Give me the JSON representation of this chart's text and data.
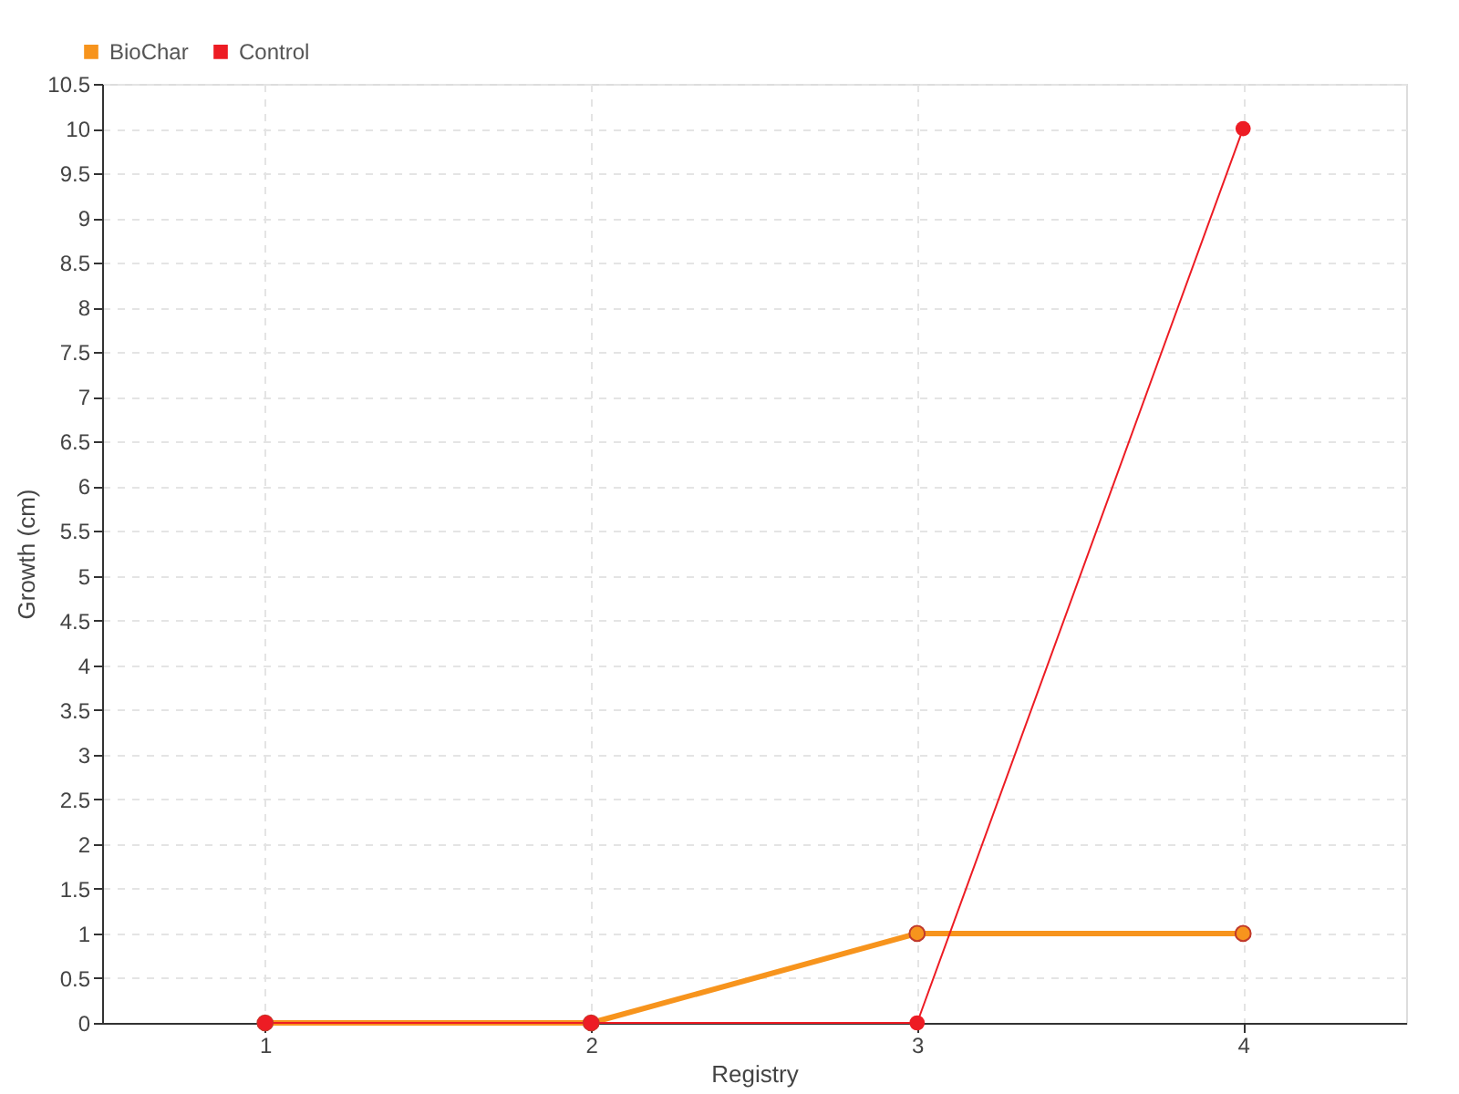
{
  "chart_data": {
    "type": "line",
    "xlabel": "Registry",
    "ylabel": "Growth (cm)",
    "x": [
      1,
      2,
      3,
      4
    ],
    "series": [
      {
        "name": "BioChar",
        "color": "#f7941d",
        "values": [
          0,
          0,
          1,
          1
        ]
      },
      {
        "name": "Control",
        "color": "#ed1c24",
        "values": [
          0,
          0,
          0,
          10
        ]
      }
    ],
    "xlim": [
      0.5,
      4.5
    ],
    "xticks": [
      1,
      2,
      3,
      4
    ],
    "ylim": [
      0,
      10.5
    ],
    "yticks": [
      0,
      0.5,
      1,
      1.5,
      2,
      2.5,
      3,
      3.5,
      4,
      4.5,
      5,
      5.5,
      6,
      6.5,
      7,
      7.5,
      8,
      8.5,
      9,
      9.5,
      10,
      10.5
    ],
    "grid": true,
    "legend": "top left",
    "marker": "circle",
    "line_style": "solid"
  }
}
